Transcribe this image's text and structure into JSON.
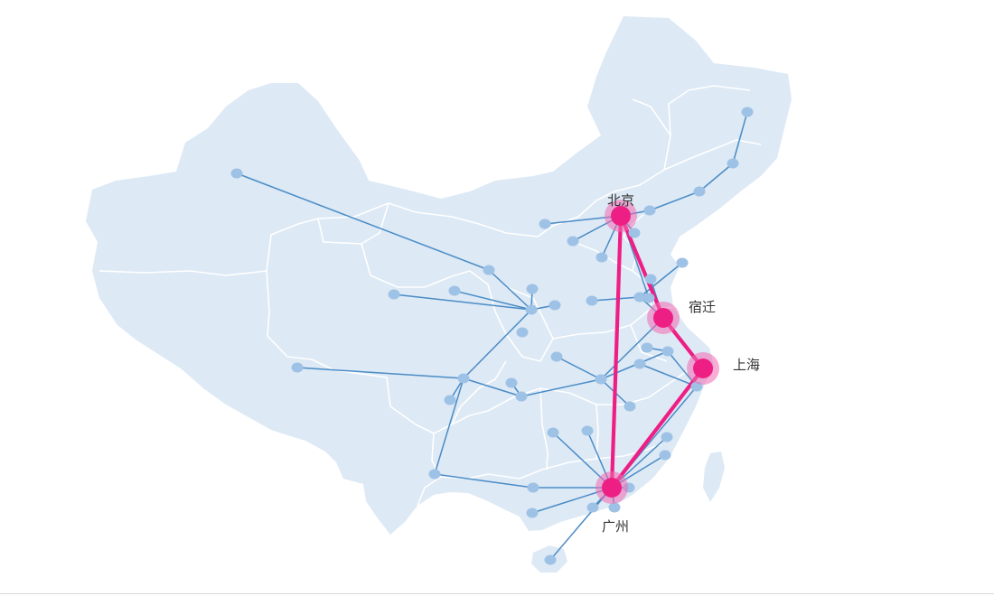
{
  "colors": {
    "land": "#dde9f5",
    "border": "#ffffff",
    "route": "#4a8cc6",
    "node": "#9ec2e6",
    "highlight": "#ee1f84",
    "highlight_halo": "#f06ab0"
  },
  "hubs": [
    {
      "id": "beijing",
      "label": "北京"
    },
    {
      "id": "suqian",
      "label": "宿迁"
    },
    {
      "id": "shanghai",
      "label": "上海"
    },
    {
      "id": "guangzhou",
      "label": "广州"
    }
  ],
  "highlight_routes": [
    [
      "beijing",
      "suqian"
    ],
    [
      "suqian",
      "shanghai"
    ],
    [
      "shanghai",
      "guangzhou"
    ],
    [
      "guangzhou",
      "beijing"
    ]
  ]
}
